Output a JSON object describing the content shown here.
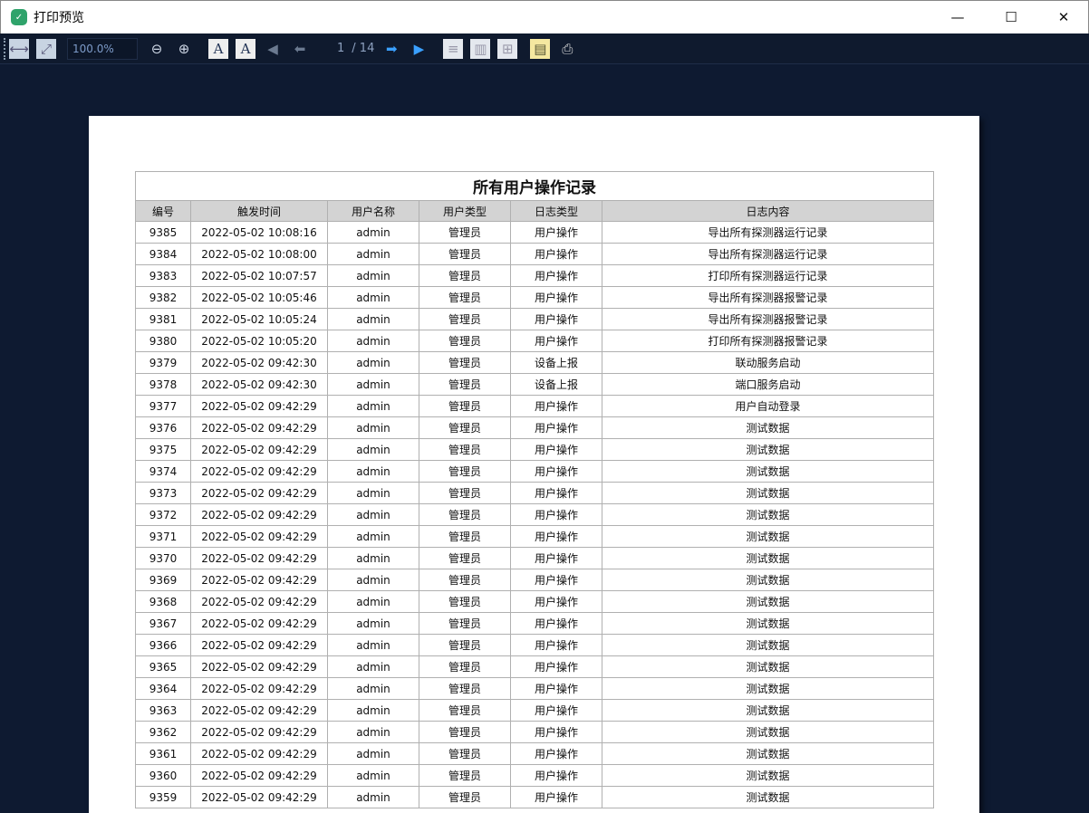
{
  "window": {
    "title": "打印预览",
    "minimize": "—",
    "maximize": "☐",
    "close": "✕"
  },
  "toolbar": {
    "zoom_value": "100.0%",
    "current_page": "1",
    "total_pages": "/ 14",
    "icons": [
      "fit-width-icon",
      "fit-page-icon",
      "zoom-out-icon",
      "zoom-in-icon",
      "portrait-icon",
      "landscape-icon",
      "first-page-icon",
      "prev-page-icon",
      "next-page-icon",
      "last-page-icon",
      "one-page-icon",
      "two-page-icon",
      "four-page-icon",
      "page-setup-icon",
      "print-icon"
    ]
  },
  "report": {
    "title": "所有用户操作记录",
    "columns": [
      "编号",
      "触发时间",
      "用户名称",
      "用户类型",
      "日志类型",
      "日志内容"
    ],
    "rows": [
      [
        "9385",
        "2022-05-02 10:08:16",
        "admin",
        "管理员",
        "用户操作",
        "导出所有探测器运行记录"
      ],
      [
        "9384",
        "2022-05-02 10:08:00",
        "admin",
        "管理员",
        "用户操作",
        "导出所有探测器运行记录"
      ],
      [
        "9383",
        "2022-05-02 10:07:57",
        "admin",
        "管理员",
        "用户操作",
        "打印所有探测器运行记录"
      ],
      [
        "9382",
        "2022-05-02 10:05:46",
        "admin",
        "管理员",
        "用户操作",
        "导出所有探测器报警记录"
      ],
      [
        "9381",
        "2022-05-02 10:05:24",
        "admin",
        "管理员",
        "用户操作",
        "导出所有探测器报警记录"
      ],
      [
        "9380",
        "2022-05-02 10:05:20",
        "admin",
        "管理员",
        "用户操作",
        "打印所有探测器报警记录"
      ],
      [
        "9379",
        "2022-05-02 09:42:30",
        "admin",
        "管理员",
        "设备上报",
        "联动服务启动"
      ],
      [
        "9378",
        "2022-05-02 09:42:30",
        "admin",
        "管理员",
        "设备上报",
        "端口服务启动"
      ],
      [
        "9377",
        "2022-05-02 09:42:29",
        "admin",
        "管理员",
        "用户操作",
        "用户自动登录"
      ],
      [
        "9376",
        "2022-05-02 09:42:29",
        "admin",
        "管理员",
        "用户操作",
        "测试数据"
      ],
      [
        "9375",
        "2022-05-02 09:42:29",
        "admin",
        "管理员",
        "用户操作",
        "测试数据"
      ],
      [
        "9374",
        "2022-05-02 09:42:29",
        "admin",
        "管理员",
        "用户操作",
        "测试数据"
      ],
      [
        "9373",
        "2022-05-02 09:42:29",
        "admin",
        "管理员",
        "用户操作",
        "测试数据"
      ],
      [
        "9372",
        "2022-05-02 09:42:29",
        "admin",
        "管理员",
        "用户操作",
        "测试数据"
      ],
      [
        "9371",
        "2022-05-02 09:42:29",
        "admin",
        "管理员",
        "用户操作",
        "测试数据"
      ],
      [
        "9370",
        "2022-05-02 09:42:29",
        "admin",
        "管理员",
        "用户操作",
        "测试数据"
      ],
      [
        "9369",
        "2022-05-02 09:42:29",
        "admin",
        "管理员",
        "用户操作",
        "测试数据"
      ],
      [
        "9368",
        "2022-05-02 09:42:29",
        "admin",
        "管理员",
        "用户操作",
        "测试数据"
      ],
      [
        "9367",
        "2022-05-02 09:42:29",
        "admin",
        "管理员",
        "用户操作",
        "测试数据"
      ],
      [
        "9366",
        "2022-05-02 09:42:29",
        "admin",
        "管理员",
        "用户操作",
        "测试数据"
      ],
      [
        "9365",
        "2022-05-02 09:42:29",
        "admin",
        "管理员",
        "用户操作",
        "测试数据"
      ],
      [
        "9364",
        "2022-05-02 09:42:29",
        "admin",
        "管理员",
        "用户操作",
        "测试数据"
      ],
      [
        "9363",
        "2022-05-02 09:42:29",
        "admin",
        "管理员",
        "用户操作",
        "测试数据"
      ],
      [
        "9362",
        "2022-05-02 09:42:29",
        "admin",
        "管理员",
        "用户操作",
        "测试数据"
      ],
      [
        "9361",
        "2022-05-02 09:42:29",
        "admin",
        "管理员",
        "用户操作",
        "测试数据"
      ],
      [
        "9360",
        "2022-05-02 09:42:29",
        "admin",
        "管理员",
        "用户操作",
        "测试数据"
      ],
      [
        "9359",
        "2022-05-02 09:42:29",
        "admin",
        "管理员",
        "用户操作",
        "测试数据"
      ]
    ]
  }
}
